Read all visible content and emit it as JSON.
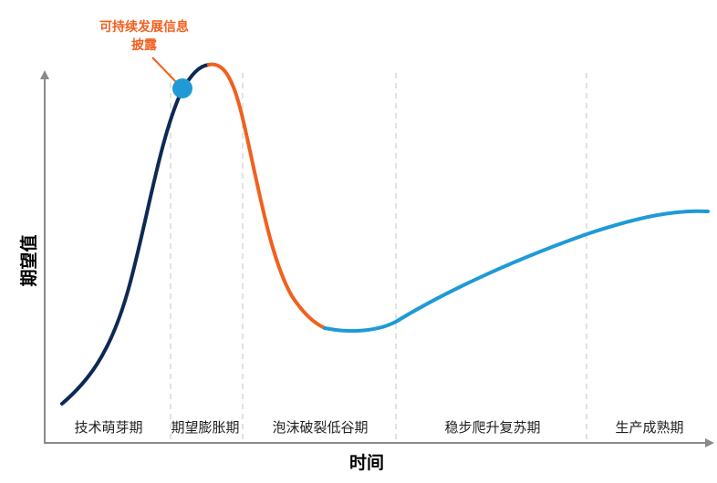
{
  "axes": {
    "y_title": "期望值",
    "x_title": "时间"
  },
  "phases": [
    {
      "label": "技术萌芽期"
    },
    {
      "label": "期望膨胀期"
    },
    {
      "label": "泡沫破裂低谷期"
    },
    {
      "label": "稳步爬升复苏期"
    },
    {
      "label": "生产成熟期"
    }
  ],
  "callout": {
    "line1": "可持续发展信息",
    "line2": "披露"
  },
  "colors": {
    "rising": "#0c2a54",
    "falling": "#f2601e",
    "recovery": "#1f9ad6",
    "marker": "#1f9ad6",
    "callout_text": "#f2601e",
    "axis": "#8a8a8a",
    "divider": "#cfcfcf"
  }
}
